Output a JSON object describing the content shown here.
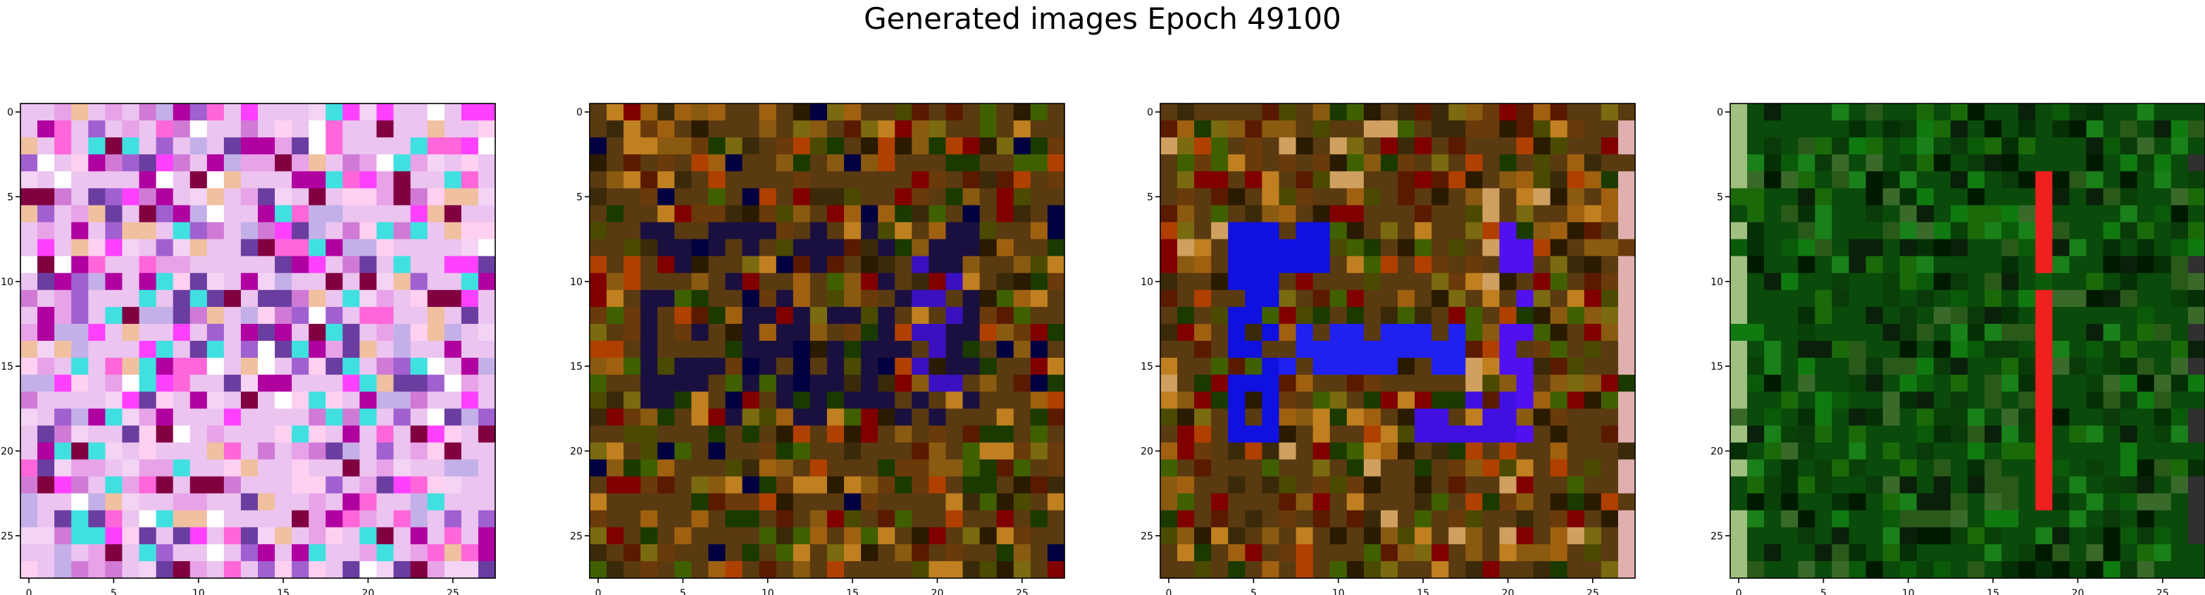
{
  "suptitle": "Generated images Epoch 49100",
  "chart_data": [
    {
      "type": "heatmap",
      "grid_size": [
        28,
        28
      ],
      "x_ticks": [
        0,
        5,
        10,
        15,
        20,
        25
      ],
      "y_ticks": [
        0,
        5,
        10,
        15,
        20,
        25
      ],
      "tick_labels": [
        "0",
        "5",
        "10",
        "15",
        "20",
        "25"
      ],
      "palette": [
        "#f4d4f4",
        "#e8a2e8",
        "#ffffff",
        "#d07ad6",
        "#c4b0e8",
        "#ff66d9",
        "#a060d0",
        "#ffd0f0",
        "#b000a0",
        "#6a3ea0",
        "#ff40ff",
        "#f0c0a0",
        "#40e0e0",
        "#800040"
      ],
      "base_color": "#ebc4ef",
      "regions": [],
      "seed": 11
    },
    {
      "type": "heatmap",
      "grid_size": [
        28,
        28
      ],
      "x_ticks": [
        0,
        5,
        10,
        15,
        20,
        25
      ],
      "y_ticks": [
        0,
        5,
        10,
        15,
        20,
        25
      ],
      "tick_labels": [
        "0",
        "5",
        "10",
        "15",
        "20",
        "25"
      ],
      "palette": [
        "#6a3a0a",
        "#8a5a10",
        "#3a2a0a",
        "#a06010",
        "#5a1a00",
        "#7a6a10",
        "#2a1a00",
        "#c08020",
        "#4a4a00",
        "#800000",
        "#1a3a00",
        "#b04000",
        "#000040",
        "#406000"
      ],
      "base_color": "#5a3a10",
      "regions": [
        {
          "rows": [
            7,
            18
          ],
          "cols": [
            3,
            22
          ],
          "color": "#1a1040",
          "density": 0.35
        },
        {
          "rows": [
            9,
            16
          ],
          "cols": [
            19,
            21
          ],
          "color": "#3a10c0",
          "density": 0.5
        }
      ],
      "seed": 23
    },
    {
      "type": "heatmap",
      "grid_size": [
        28,
        28
      ],
      "x_ticks": [
        0,
        5,
        10,
        15,
        20,
        25
      ],
      "y_ticks": [
        0,
        5,
        10,
        15,
        20,
        25
      ],
      "tick_labels": [
        "0",
        "5",
        "10",
        "15",
        "20",
        "25"
      ],
      "palette": [
        "#6a3a0a",
        "#8a5a10",
        "#3a2a0a",
        "#a06010",
        "#5a1a00",
        "#7a6a10",
        "#2a1a00",
        "#c08020",
        "#4a4a00",
        "#800000",
        "#1a3a00",
        "#b04000",
        "#406000",
        "#d0a060"
      ],
      "base_color": "#5a3a10",
      "regions": [
        {
          "rows": [
            7,
            19
          ],
          "cols": [
            4,
            6
          ],
          "color": "#1010e0",
          "density": 0.8
        },
        {
          "rows": [
            7,
            9
          ],
          "cols": [
            4,
            9
          ],
          "color": "#1010e0",
          "density": 0.8
        },
        {
          "rows": [
            13,
            15
          ],
          "cols": [
            7,
            17
          ],
          "color": "#2020f0",
          "density": 0.75
        },
        {
          "rows": [
            7,
            20
          ],
          "cols": [
            20,
            21
          ],
          "color": "#5010f0",
          "density": 0.8
        },
        {
          "rows": [
            17,
            19
          ],
          "cols": [
            15,
            20
          ],
          "color": "#4010e0",
          "density": 0.6
        },
        {
          "rows": [
            0,
            27
          ],
          "cols": [
            27,
            27
          ],
          "color": "#e0b0b0",
          "density": 0.7
        }
      ],
      "seed": 37
    },
    {
      "type": "heatmap",
      "grid_size": [
        28,
        28
      ],
      "x_ticks": [
        0,
        5,
        10,
        15,
        20,
        25
      ],
      "y_ticks": [
        0,
        5,
        10,
        15,
        20,
        25
      ],
      "tick_labels": [
        "0",
        "5",
        "10",
        "15",
        "20",
        "25"
      ],
      "palette": [
        "#0a4a0a",
        "#1a6a0a",
        "#0a3a0a",
        "#2a5a1a",
        "#084008",
        "#107a10",
        "#053005",
        "#1a801a",
        "#0a200a",
        "#3a6a2a",
        "#0a5a0a",
        "#001a00"
      ],
      "base_color": "#0a4a0a",
      "regions": [
        {
          "rows": [
            4,
            23
          ],
          "cols": [
            18,
            18
          ],
          "color": "#f02020",
          "density": 0.9
        },
        {
          "rows": [
            0,
            27
          ],
          "cols": [
            0,
            0
          ],
          "color": "#a0c080",
          "density": 0.6
        },
        {
          "rows": [
            2,
            25
          ],
          "cols": [
            27,
            27
          ],
          "color": "#303030",
          "density": 0.5
        }
      ],
      "seed": 53
    }
  ]
}
